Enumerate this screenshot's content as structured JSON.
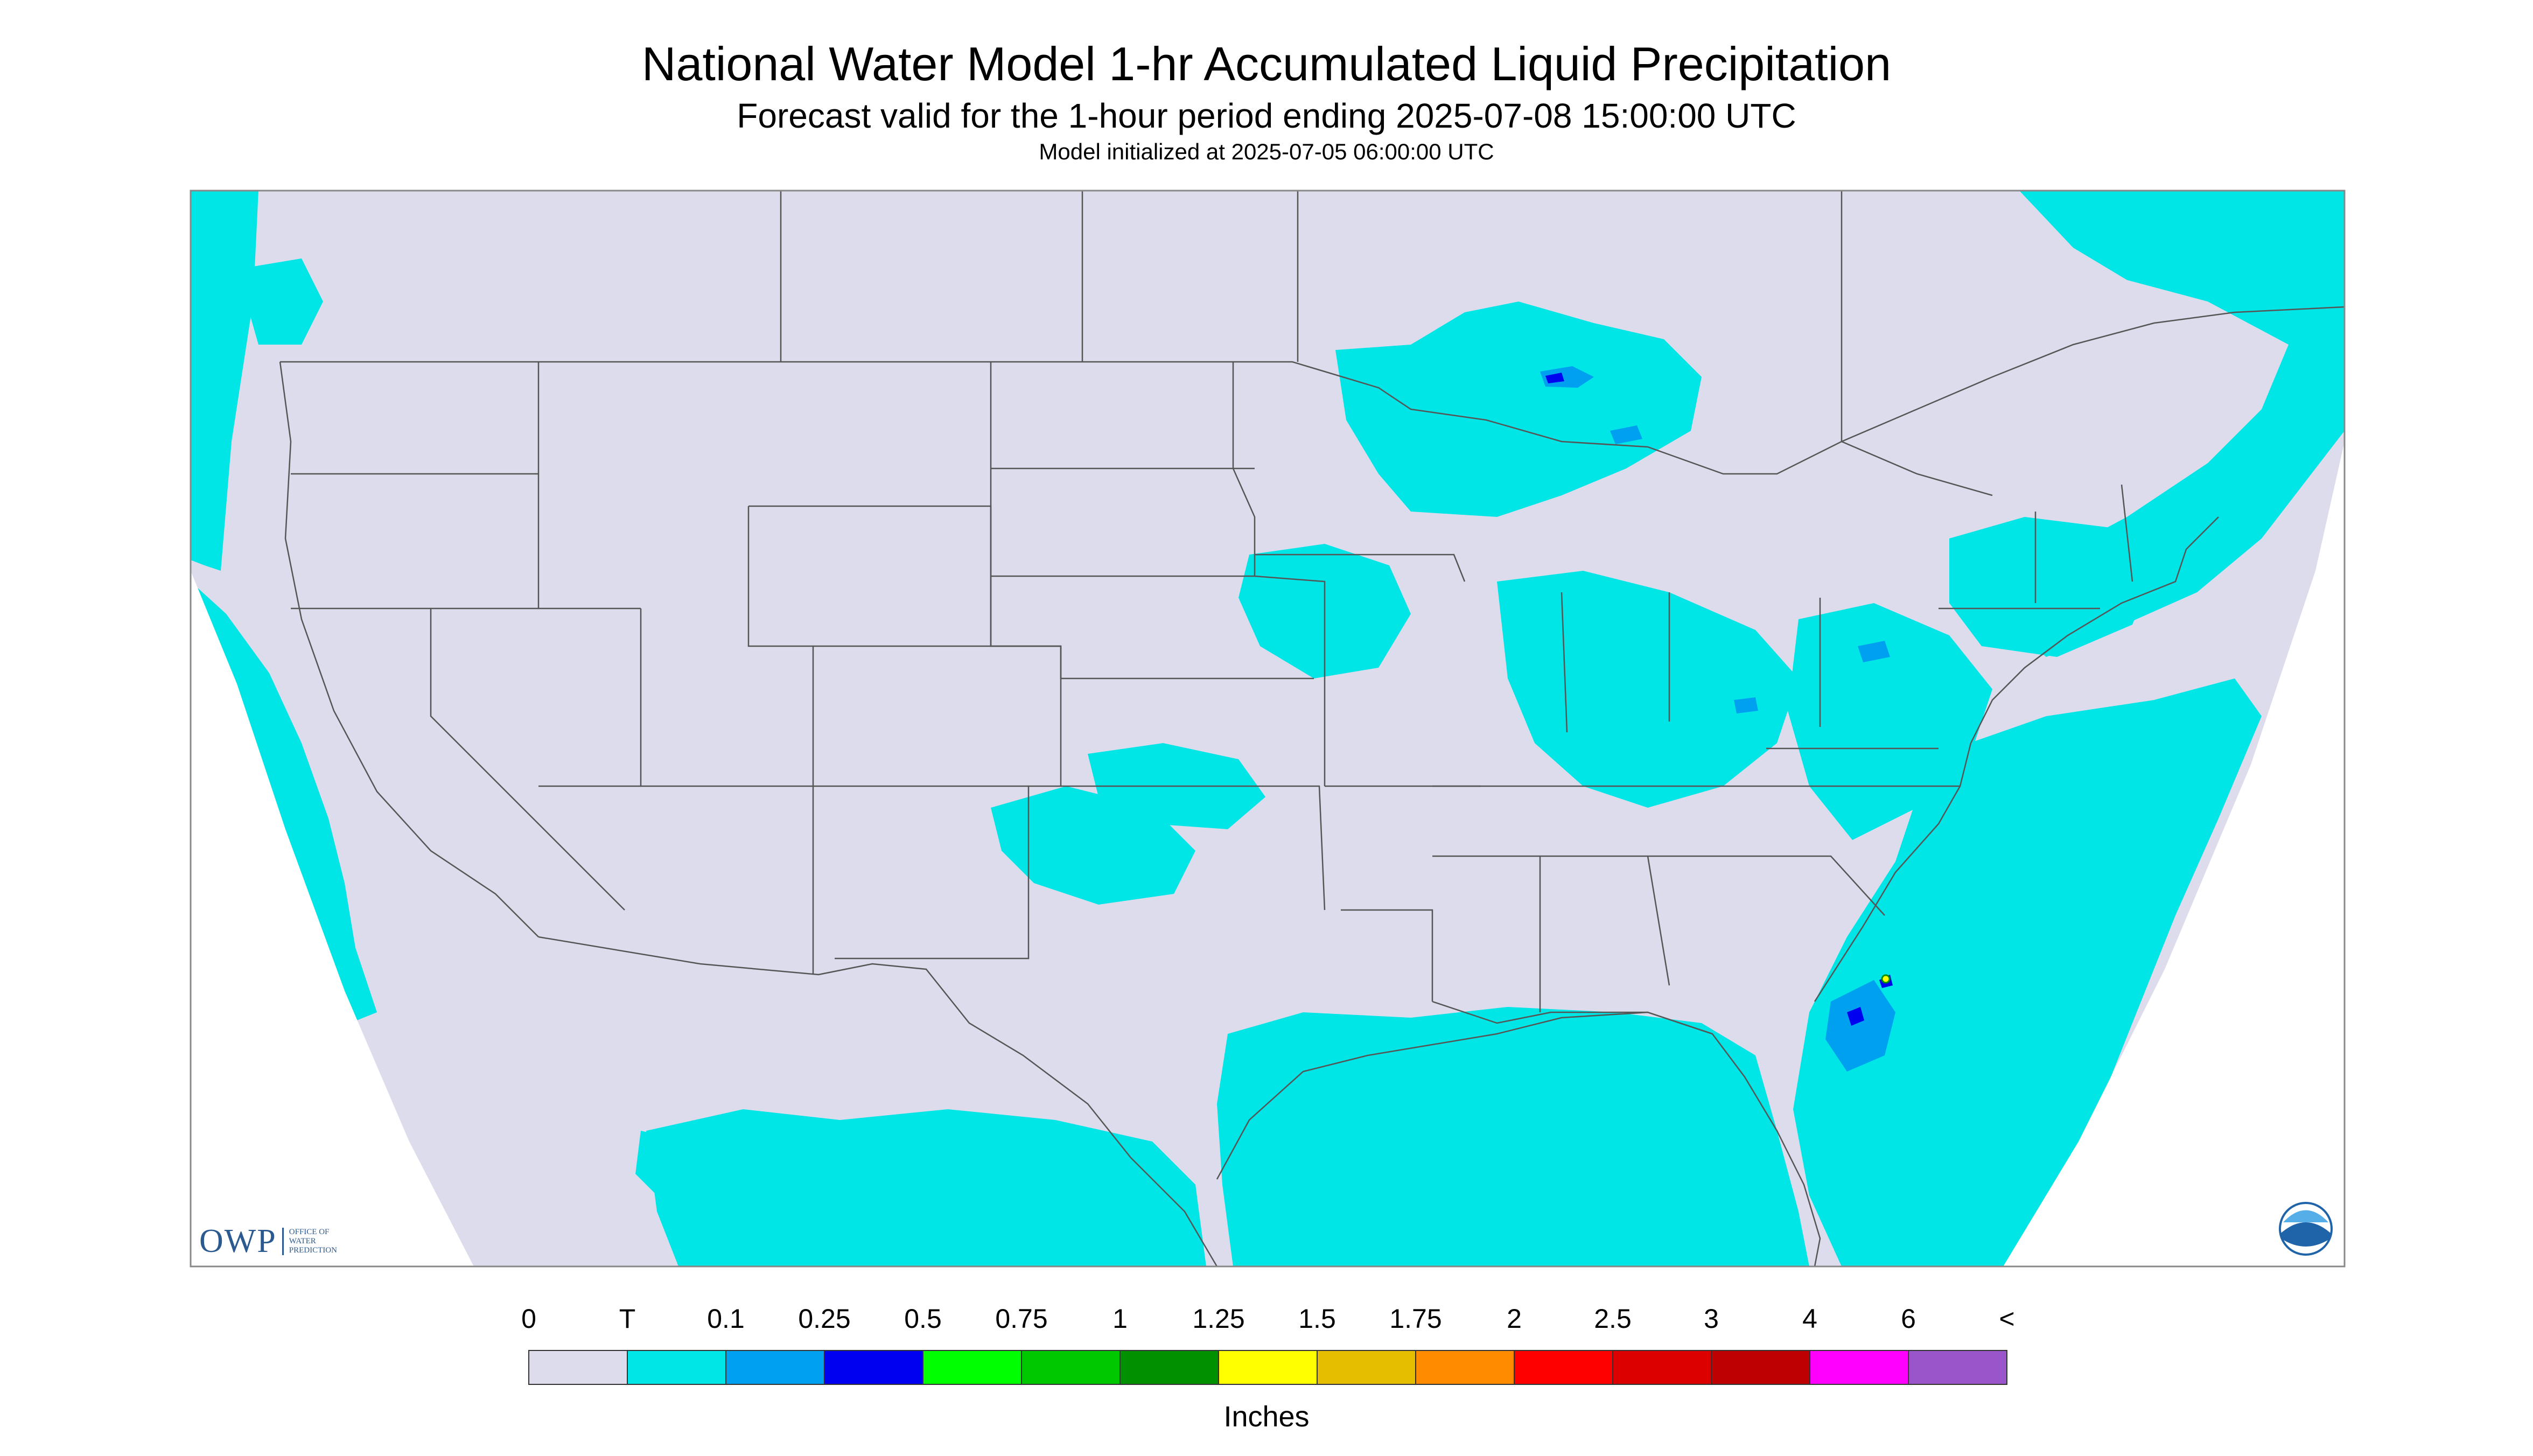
{
  "title": "National Water Model 1-hr Accumulated Liquid Precipitation",
  "subtitle": "Forecast valid for the 1-hour period ending 2025-07-08 15:00:00 UTC",
  "init": "Model initialized at 2025-07-05 06:00:00 UTC",
  "colorbar": {
    "labels": [
      "0",
      "T",
      "0.1",
      "0.25",
      "0.5",
      "0.75",
      "1",
      "1.25",
      "1.5",
      "1.75",
      "2",
      "2.5",
      "3",
      "4",
      "6",
      "<"
    ],
    "colors": [
      "#dcdcec",
      "#00e5e5",
      "#00a0f0",
      "#0000f0",
      "#00ff00",
      "#00c800",
      "#009000",
      "#ffff00",
      "#e6be00",
      "#ff8c00",
      "#ff0000",
      "#dc0000",
      "#be0000",
      "#ff00ff",
      "#9955c9"
    ],
    "units": "Inches"
  },
  "map_colors": {
    "background": "#dcdcec",
    "precip_trace": "#00e5e5",
    "precip_light": "#00a0f0",
    "precip_heavy": "#0000f0",
    "boundary": "#555555"
  },
  "logos": {
    "owp_text": "OWP",
    "owp_sub": [
      "OFFICE OF",
      "WATER",
      "PREDICTION"
    ],
    "noaa_text": "NOAA"
  }
}
